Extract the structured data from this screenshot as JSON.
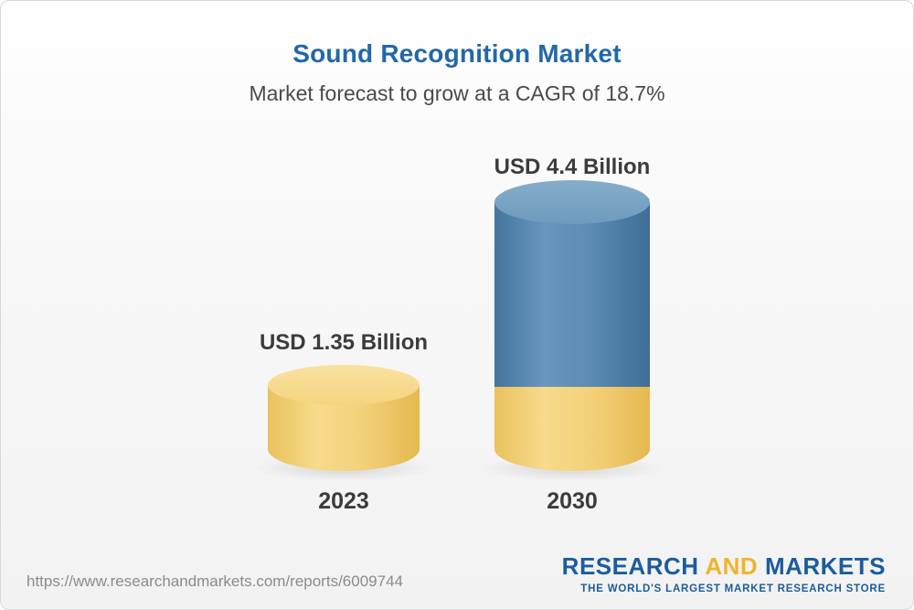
{
  "header": {
    "title": "Sound Recognition Market",
    "subtitle": "Market forecast to grow at a CAGR of 18.7%"
  },
  "chart_data": {
    "type": "bar",
    "title": "Sound Recognition Market",
    "subtitle": "Market forecast to grow at a CAGR of 18.7%",
    "categories": [
      "2023",
      "2030"
    ],
    "values": [
      1.35,
      4.4
    ],
    "value_labels": [
      "USD 1.35 Billion",
      "USD 4.4 Billion"
    ],
    "unit": "USD Billion",
    "cagr_percent": 18.7,
    "ylim": [
      0,
      5
    ],
    "grid": false,
    "legend": "none",
    "bar_style": "3d-cylinder",
    "colors": {
      "bar_2023": "#f3cc6c",
      "bar_2030_body": "#5d8cb4",
      "bar_2030_base": "#f3cc6c",
      "title_text": "#2268a8",
      "label_text": "#3b3b3b"
    }
  },
  "footer": {
    "url": "https://www.researchandmarkets.com/reports/6009744",
    "logo": {
      "research": "RESEARCH",
      "and": "AND",
      "markets": "MARKETS",
      "tagline": "THE WORLD'S LARGEST MARKET RESEARCH STORE"
    }
  }
}
